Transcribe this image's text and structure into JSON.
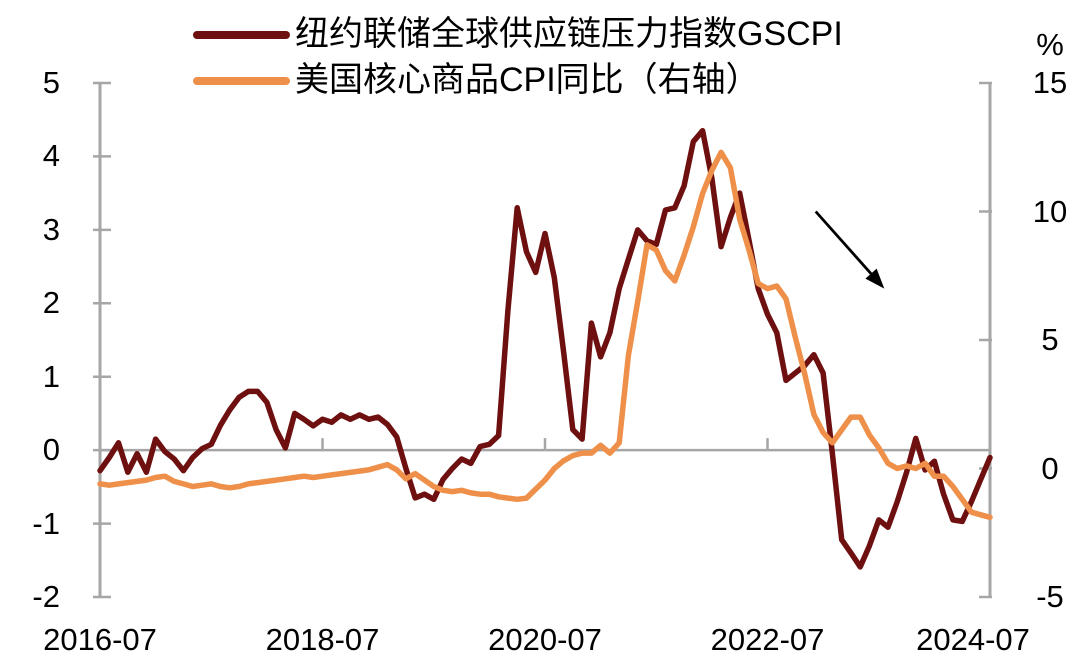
{
  "legend": {
    "items": [
      {
        "label": "纽约联储全球供应链压力指数GSCPI",
        "color": "#6e1010"
      },
      {
        "label": "美国核心商品CPI同比（右轴）",
        "color": "#ee9049"
      }
    ]
  },
  "chart_data": {
    "type": "line",
    "title": "",
    "x": {
      "start": "2016-07",
      "end": "2024-07",
      "step_months": 1,
      "count": 97,
      "tick_labels": [
        "2016-07",
        "2018-07",
        "2020-07",
        "2022-07",
        "2024-07"
      ],
      "tick_month_indices": [
        0,
        24,
        48,
        72,
        96
      ]
    },
    "left_axis": {
      "min": -2,
      "max": 5,
      "ticks": [
        5,
        4,
        3,
        2,
        1,
        0,
        -1,
        -2
      ]
    },
    "right_axis": {
      "min": -5,
      "max": 15,
      "ticks": [
        15,
        10,
        5,
        0,
        -5
      ],
      "unit": "%"
    },
    "grid": {
      "zero_line": true
    },
    "legend_position": "top-left",
    "colors": {
      "axis": "#a6a6a6",
      "text": "#000000",
      "annotation": "#000000"
    },
    "series": [
      {
        "name": "纽约联储全球供应链压力指数GSCPI",
        "axis": "left",
        "color": "#6e1010",
        "values": [
          -0.28,
          -0.1,
          0.1,
          -0.3,
          -0.05,
          -0.3,
          0.15,
          -0.02,
          -0.12,
          -0.28,
          -0.1,
          0.02,
          0.08,
          0.34,
          0.55,
          0.72,
          0.8,
          0.8,
          0.65,
          0.28,
          0.03,
          0.5,
          0.42,
          0.33,
          0.42,
          0.38,
          0.48,
          0.42,
          0.48,
          0.42,
          0.45,
          0.35,
          0.18,
          -0.25,
          -0.65,
          -0.6,
          -0.67,
          -0.4,
          -0.25,
          -0.12,
          -0.18,
          0.05,
          0.08,
          0.2,
          1.9,
          3.3,
          2.7,
          2.42,
          2.95,
          2.35,
          1.35,
          0.28,
          0.15,
          1.73,
          1.27,
          1.6,
          2.2,
          2.6,
          3.0,
          2.85,
          2.8,
          3.27,
          3.3,
          3.6,
          4.2,
          4.35,
          3.7,
          2.77,
          3.17,
          3.5,
          2.86,
          2.2,
          1.85,
          1.6,
          0.95,
          1.05,
          1.15,
          1.3,
          1.05,
          -0.05,
          -1.22,
          -1.4,
          -1.59,
          -1.3,
          -0.95,
          -1.05,
          -0.7,
          -0.3,
          0.16,
          -0.27,
          -0.15,
          -0.6,
          -0.95,
          -0.97,
          -0.7,
          -0.4,
          -0.1
        ]
      },
      {
        "name": "美国核心商品CPI同比（右轴）",
        "axis": "right",
        "color": "#ee9049",
        "values": [
          -0.6,
          -0.65,
          -0.6,
          -0.55,
          -0.5,
          -0.45,
          -0.35,
          -0.3,
          -0.5,
          -0.6,
          -0.7,
          -0.65,
          -0.6,
          -0.7,
          -0.75,
          -0.7,
          -0.6,
          -0.55,
          -0.5,
          -0.45,
          -0.4,
          -0.35,
          -0.3,
          -0.35,
          -0.3,
          -0.25,
          -0.2,
          -0.15,
          -0.1,
          -0.05,
          0.05,
          0.15,
          -0.05,
          -0.4,
          -0.2,
          -0.45,
          -0.7,
          -0.85,
          -0.9,
          -0.85,
          -0.95,
          -1.0,
          -1.0,
          -1.1,
          -1.15,
          -1.2,
          -1.15,
          -0.8,
          -0.45,
          0.0,
          0.3,
          0.5,
          0.6,
          0.6,
          0.9,
          0.6,
          1.0,
          4.4,
          6.5,
          8.7,
          8.5,
          7.7,
          7.3,
          8.3,
          9.4,
          10.7,
          11.6,
          12.3,
          11.7,
          9.7,
          8.5,
          7.2,
          7.0,
          7.1,
          6.6,
          5.1,
          3.7,
          2.1,
          1.4,
          1.0,
          1.5,
          2.0,
          2.0,
          1.3,
          0.8,
          0.2,
          0.0,
          0.1,
          0.0,
          0.2,
          -0.3,
          -0.3,
          -0.7,
          -1.2,
          -1.7,
          -1.8,
          -1.9
        ]
      }
    ],
    "annotation": {
      "type": "arrow",
      "from": {
        "month_index": 77.2,
        "value_left_axis": 3.25
      },
      "to": {
        "month_index": 84.6,
        "value_left_axis": 2.2
      }
    }
  }
}
